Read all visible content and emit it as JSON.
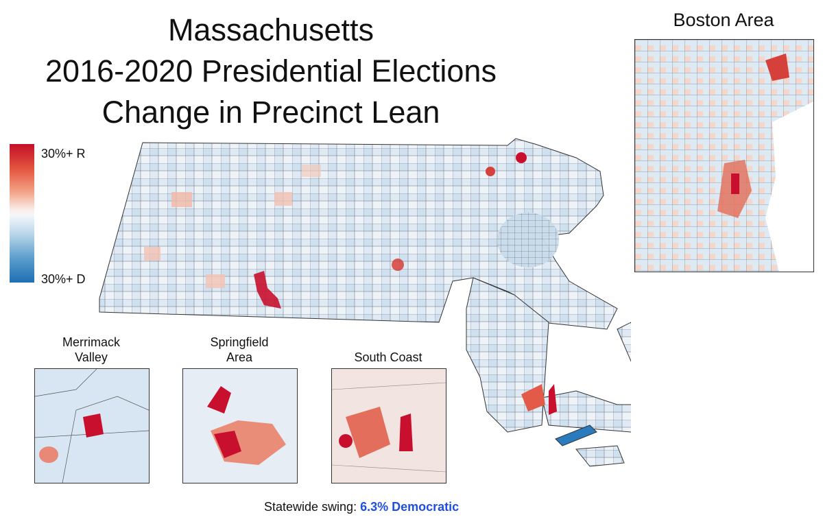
{
  "title": {
    "line1": "Massachusetts",
    "line2": "2016-2020 Presidential Elections",
    "line3": "Change in Precinct Lean"
  },
  "legend": {
    "top_label": "30%+ R",
    "bottom_label": "30%+ D",
    "colors": {
      "strong_r": "#c40f27",
      "neutral": "#f7f7f7",
      "strong_d": "#1e6fb2"
    }
  },
  "insets": {
    "boston": {
      "label": "Boston Area"
    },
    "merrimack": {
      "label_line1": "Merrimack",
      "label_line2": "Valley"
    },
    "springfield": {
      "label_line1": "Springfield",
      "label_line2": "Area"
    },
    "south_coast": {
      "label": "South Coast"
    }
  },
  "footer": {
    "prefix": "Statewide swing:",
    "value": "6.3% Democratic"
  }
}
